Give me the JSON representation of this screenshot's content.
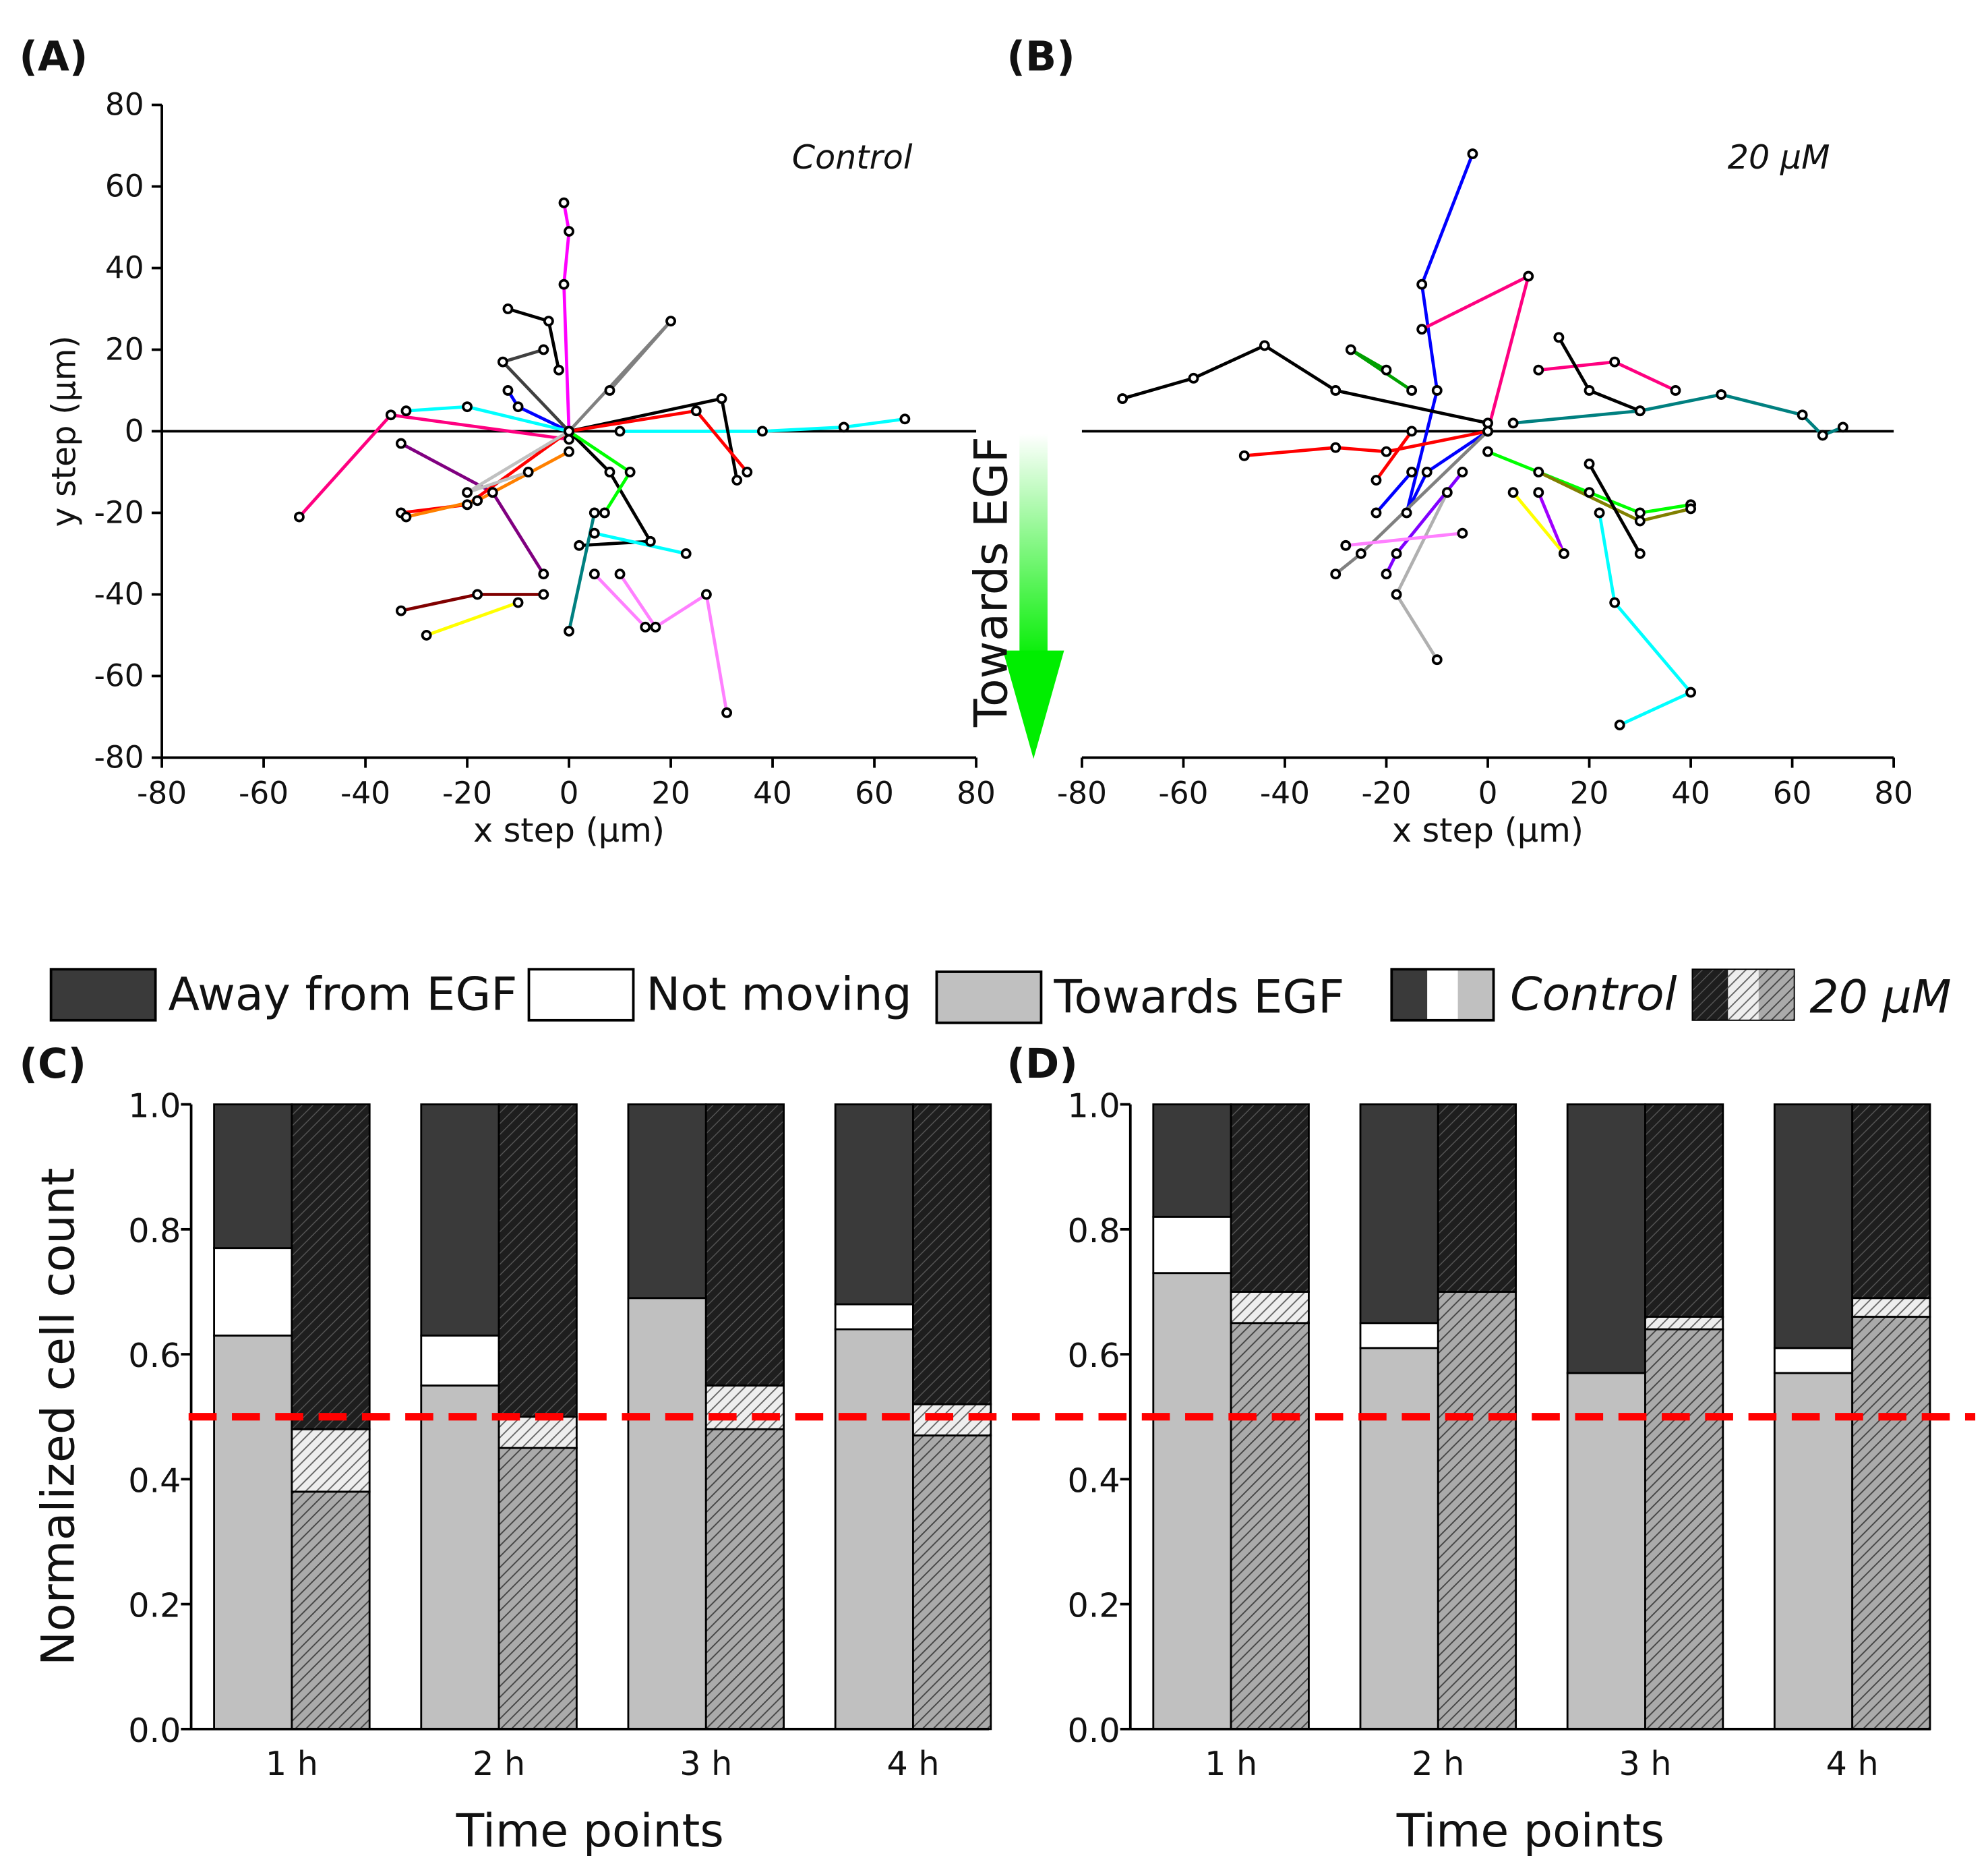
{
  "panel_labels": {
    "a": "(A)",
    "b": "(B)",
    "c": "(C)",
    "d": "(D)"
  },
  "arrow_label": "Towards EGF",
  "legend": {
    "away": "Away from EGF",
    "not_moving": "Not moving",
    "towards": "Towards EGF",
    "control": "Control",
    "treated": "20 µM"
  },
  "colors": {
    "away": "#3a3a3a",
    "not_moving": "#ffffff",
    "towards": "#c0c0c0",
    "reference_line": "#ff0000",
    "arrow": "#00ee00"
  },
  "chart_data": [
    {
      "type": "line",
      "panel": "A",
      "annotation": "Control",
      "xlabel": "x step (µm)",
      "ylabel": "y step (µm)",
      "xlim": [
        -80,
        80
      ],
      "ylim": [
        -80,
        80
      ],
      "xticks": [
        "-80",
        "-60",
        "-40",
        "-20",
        "0",
        "20",
        "40",
        "60",
        "80"
      ],
      "yticks": [
        "-80",
        "-60",
        "-40",
        "-20",
        "0",
        "20",
        "40",
        "60",
        "80"
      ],
      "tracks": [
        {
          "color": "#ff00ff",
          "points": [
            [
              0,
              0
            ],
            [
              -1,
              36
            ],
            [
              0,
              49
            ],
            [
              -1,
              56
            ]
          ]
        },
        {
          "color": "#ff0080",
          "points": [
            [
              0,
              -2
            ],
            [
              -35,
              4
            ],
            [
              -53,
              -21
            ]
          ]
        },
        {
          "color": "#00ffff",
          "points": [
            [
              10,
              0
            ],
            [
              38,
              0
            ],
            [
              54,
              1
            ],
            [
              66,
              3
            ]
          ]
        },
        {
          "color": "#ff80ff",
          "points": [
            [
              10,
              -35
            ],
            [
              17,
              -48
            ],
            [
              27,
              -40
            ],
            [
              31,
              -69
            ]
          ]
        },
        {
          "color": "#000000",
          "points": [
            [
              0,
              0
            ],
            [
              8,
              -10
            ],
            [
              16,
              -27
            ],
            [
              2,
              -28
            ]
          ]
        },
        {
          "color": "#800000",
          "points": [
            [
              -5,
              -40
            ],
            [
              -18,
              -40
            ],
            [
              -33,
              -44
            ]
          ]
        },
        {
          "color": "#ffff00",
          "points": [
            [
              -10,
              -42
            ],
            [
              -28,
              -50
            ]
          ]
        },
        {
          "color": "#800080",
          "points": [
            [
              -33,
              -3
            ],
            [
              -15,
              -15
            ],
            [
              -5,
              -35
            ]
          ]
        },
        {
          "color": "#008080",
          "points": [
            [
              5,
              -20
            ],
            [
              0,
              -49
            ]
          ]
        },
        {
          "color": "#808080",
          "points": [
            [
              0,
              0
            ],
            [
              20,
              27
            ],
            [
              8,
              10
            ]
          ]
        },
        {
          "color": "#000000",
          "points": [
            [
              -12,
              30
            ],
            [
              -4,
              27
            ],
            [
              -2,
              15
            ]
          ]
        },
        {
          "color": "#ff0000",
          "points": [
            [
              0,
              0
            ],
            [
              -20,
              -18
            ],
            [
              -33,
              -20
            ]
          ]
        },
        {
          "color": "#ff8000",
          "points": [
            [
              0,
              -5
            ],
            [
              -18,
              -17
            ],
            [
              -32,
              -21
            ]
          ]
        },
        {
          "color": "#00ff00",
          "points": [
            [
              0,
              0
            ],
            [
              12,
              -10
            ],
            [
              7,
              -20
            ]
          ]
        },
        {
          "color": "#0000ff",
          "points": [
            [
              0,
              0
            ],
            [
              -10,
              6
            ],
            [
              -12,
              10
            ]
          ]
        },
        {
          "color": "#00ffff",
          "points": [
            [
              0,
              0
            ],
            [
              -20,
              6
            ],
            [
              -32,
              5
            ]
          ]
        },
        {
          "color": "#000000",
          "points": [
            [
              0,
              0
            ],
            [
              30,
              8
            ],
            [
              33,
              -12
            ]
          ]
        },
        {
          "color": "#c0c0c0",
          "points": [
            [
              0,
              0
            ],
            [
              -20,
              -15
            ],
            [
              -8,
              -10
            ]
          ]
        },
        {
          "color": "#00ffff",
          "points": [
            [
              5,
              -25
            ],
            [
              23,
              -30
            ]
          ]
        },
        {
          "color": "#ff80ff",
          "points": [
            [
              5,
              -35
            ],
            [
              15,
              -48
            ]
          ]
        },
        {
          "color": "#404040",
          "points": [
            [
              0,
              0
            ],
            [
              -13,
              17
            ],
            [
              -5,
              20
            ]
          ]
        },
        {
          "color": "#ff0000",
          "points": [
            [
              0,
              0
            ],
            [
              25,
              5
            ],
            [
              35,
              -10
            ]
          ]
        }
      ]
    },
    {
      "type": "line",
      "panel": "B",
      "annotation": "20  µM",
      "xlabel": "x step (µm)",
      "xlim": [
        -80,
        80
      ],
      "ylim": [
        -80,
        80
      ],
      "xticks": [
        "-80",
        "-60",
        "-40",
        "-20",
        "0",
        "20",
        "40",
        "60",
        "80"
      ],
      "tracks": [
        {
          "color": "#0000ff",
          "points": [
            [
              0,
              0
            ],
            [
              -12,
              -10
            ],
            [
              -16,
              -20
            ],
            [
              -10,
              10
            ],
            [
              -13,
              36
            ],
            [
              -3,
              68
            ]
          ]
        },
        {
          "color": "#000000",
          "points": [
            [
              0,
              2
            ],
            [
              -30,
              10
            ],
            [
              -44,
              21
            ],
            [
              -58,
              13
            ],
            [
              -72,
              8
            ]
          ]
        },
        {
          "color": "#008080",
          "points": [
            [
              5,
              2
            ],
            [
              30,
              5
            ],
            [
              46,
              9
            ],
            [
              62,
              4
            ],
            [
              66,
              -1
            ],
            [
              70,
              1
            ]
          ]
        },
        {
          "color": "#ff0080",
          "points": [
            [
              0,
              0
            ],
            [
              8,
              38
            ],
            [
              -13,
              25
            ]
          ]
        },
        {
          "color": "#00ffff",
          "points": [
            [
              22,
              -20
            ],
            [
              25,
              -42
            ],
            [
              40,
              -64
            ],
            [
              26,
              -72
            ]
          ]
        },
        {
          "color": "#b0b0b0",
          "points": [
            [
              -8,
              -15
            ],
            [
              -18,
              -40
            ],
            [
              -10,
              -56
            ]
          ]
        },
        {
          "color": "#ff0000",
          "points": [
            [
              0,
              0
            ],
            [
              -20,
              -5
            ],
            [
              -30,
              -4
            ],
            [
              -48,
              -6
            ]
          ]
        },
        {
          "color": "#00ff00",
          "points": [
            [
              0,
              -5
            ],
            [
              20,
              -15
            ],
            [
              30,
              -20
            ],
            [
              40,
              -18
            ]
          ]
        },
        {
          "color": "#808000",
          "points": [
            [
              10,
              -10
            ],
            [
              30,
              -22
            ],
            [
              40,
              -19
            ]
          ]
        },
        {
          "color": "#ff0080",
          "points": [
            [
              10,
              15
            ],
            [
              25,
              17
            ],
            [
              37,
              10
            ]
          ]
        },
        {
          "color": "#000000",
          "points": [
            [
              14,
              23
            ],
            [
              20,
              10
            ],
            [
              30,
              5
            ]
          ]
        },
        {
          "color": "#8000ff",
          "points": [
            [
              -5,
              -10
            ],
            [
              -18,
              -30
            ],
            [
              -20,
              -35
            ]
          ]
        },
        {
          "color": "#00a000",
          "points": [
            [
              -15,
              10
            ],
            [
              -27,
              20
            ],
            [
              -20,
              15
            ]
          ]
        },
        {
          "color": "#0000ff",
          "points": [
            [
              -15,
              -10
            ],
            [
              -22,
              -20
            ]
          ]
        },
        {
          "color": "#808080",
          "points": [
            [
              0,
              0
            ],
            [
              -25,
              -30
            ],
            [
              -30,
              -35
            ]
          ]
        },
        {
          "color": "#000000",
          "points": [
            [
              20,
              -8
            ],
            [
              30,
              -30
            ]
          ]
        },
        {
          "color": "#a000ff",
          "points": [
            [
              10,
              -15
            ],
            [
              15,
              -30
            ]
          ]
        },
        {
          "color": "#ff80ff",
          "points": [
            [
              -5,
              -25
            ],
            [
              -28,
              -28
            ]
          ]
        },
        {
          "color": "#ff0000",
          "points": [
            [
              -15,
              0
            ],
            [
              -22,
              -12
            ]
          ]
        },
        {
          "color": "#ffff00",
          "points": [
            [
              5,
              -15
            ],
            [
              15,
              -30
            ]
          ]
        }
      ]
    },
    {
      "type": "bar",
      "panel": "C",
      "stacked": true,
      "xlabel": "Time points",
      "ylabel": "Normalized cell count",
      "ylim": [
        0,
        1.0
      ],
      "yticks": [
        "0.0",
        "0.2",
        "0.4",
        "0.6",
        "0.8",
        "1.0"
      ],
      "categories": [
        "1 h",
        "2 h",
        "3 h",
        "4 h"
      ],
      "reference_line": 0.5,
      "groups": {
        "Control": {
          "towards": [
            0.63,
            0.55,
            0.69,
            0.64
          ],
          "not_moving": [
            0.14,
            0.08,
            0.0,
            0.04
          ],
          "away": [
            0.23,
            0.37,
            0.31,
            0.32
          ]
        },
        "20 µM": {
          "towards": [
            0.38,
            0.45,
            0.48,
            0.47
          ],
          "not_moving": [
            0.1,
            0.05,
            0.07,
            0.05
          ],
          "away": [
            0.52,
            0.5,
            0.45,
            0.48
          ]
        }
      }
    },
    {
      "type": "bar",
      "panel": "D",
      "stacked": true,
      "xlabel": "Time points",
      "ylim": [
        0,
        1.0
      ],
      "yticks": [
        "0.0",
        "0.2",
        "0.4",
        "0.6",
        "0.8",
        "1.0"
      ],
      "categories": [
        "1 h",
        "2 h",
        "3 h",
        "4 h"
      ],
      "reference_line": 0.5,
      "groups": {
        "Control": {
          "towards": [
            0.73,
            0.61,
            0.57,
            0.57
          ],
          "not_moving": [
            0.09,
            0.04,
            0.0,
            0.04
          ],
          "away": [
            0.18,
            0.35,
            0.43,
            0.39
          ]
        },
        "20 µM": {
          "towards": [
            0.65,
            0.7,
            0.64,
            0.66
          ],
          "not_moving": [
            0.05,
            0.0,
            0.02,
            0.03
          ],
          "away": [
            0.3,
            0.3,
            0.34,
            0.31
          ]
        }
      }
    }
  ]
}
